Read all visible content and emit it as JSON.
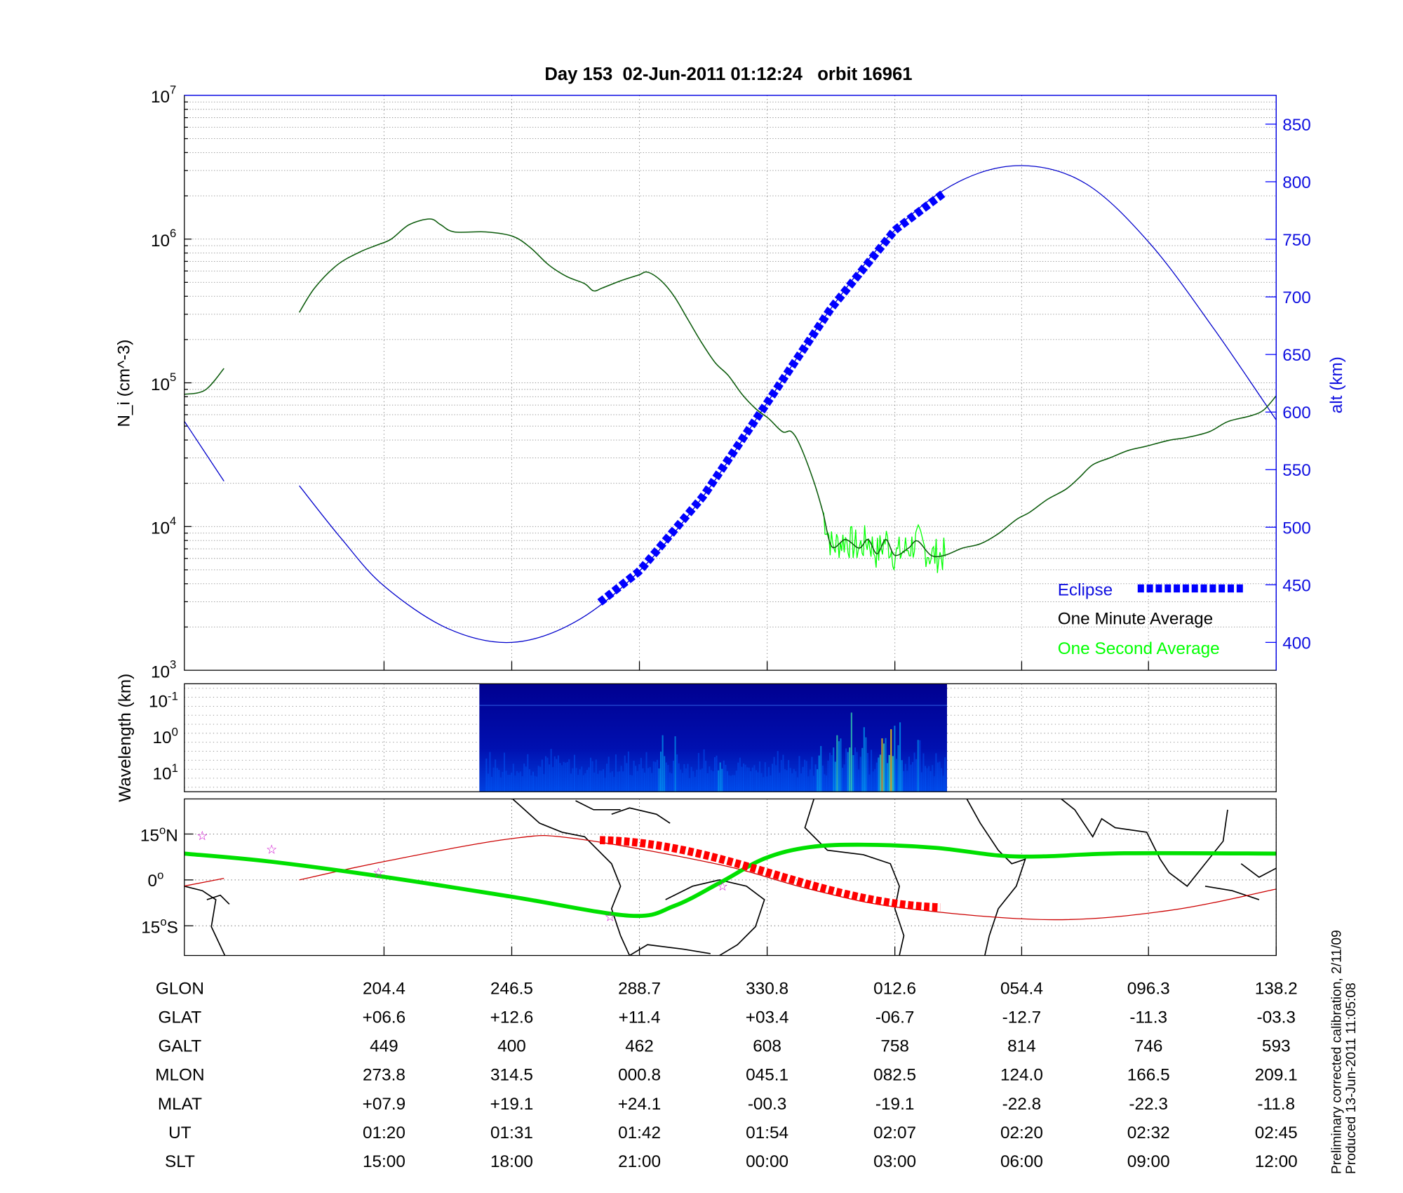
{
  "chart_data": [
    {
      "type": "line",
      "title": "Day 153  02-Jun-2011 01:12:24   orbit 16961",
      "ylabel": "N_i (cm^-3)",
      "ylabel_main": "N",
      "ylabel_sub": "i",
      "ylabel_unit": " (cm",
      "ylabel_exp": "-3",
      "ylabel_close": ")",
      "yscale": "log",
      "ylim_log10": [
        3,
        7
      ],
      "ytick_base": "10",
      "ytick_exps": [
        "3",
        "4",
        "5",
        "6",
        "7"
      ],
      "y2label": "alt (km)",
      "y2lim": [
        375,
        875
      ],
      "y2ticks": [
        "400",
        "450",
        "500",
        "550",
        "600",
        "650",
        "700",
        "750",
        "800",
        "850"
      ],
      "x_unit": "SLT hours (unwrapped)",
      "xlim": [
        10.31,
        35.96
      ],
      "grid": true,
      "legend_position": "bottom-right",
      "legend": [
        {
          "label": "Eclipse",
          "color": "#0000ff"
        },
        {
          "label": "One Minute Average",
          "color": "#000000"
        },
        {
          "label": "One Second Average",
          "color": "#00ff00"
        }
      ],
      "series": [
        {
          "name": "One Minute Average",
          "color": "#0a5a0a",
          "segments": [
            [
              [
                10.31,
                4.92
              ],
              [
                10.8,
                4.95
              ],
              [
                11.24,
                5.1
              ]
            ],
            [
              [
                13.01,
                5.49
              ],
              [
                13.37,
                5.66
              ],
              [
                13.9,
                5.82
              ],
              [
                14.43,
                5.91
              ],
              [
                14.85,
                5.96
              ],
              [
                15.17,
                6.0
              ],
              [
                15.59,
                6.1
              ],
              [
                16.08,
                6.14
              ],
              [
                16.33,
                6.1
              ],
              [
                16.65,
                6.05
              ],
              [
                17.39,
                6.05
              ],
              [
                18.02,
                6.02
              ],
              [
                18.44,
                5.94
              ],
              [
                18.87,
                5.82
              ],
              [
                19.29,
                5.74
              ],
              [
                19.71,
                5.69
              ],
              [
                19.92,
                5.64
              ],
              [
                20.13,
                5.66
              ],
              [
                20.56,
                5.71
              ],
              [
                20.98,
                5.75
              ],
              [
                21.19,
                5.77
              ],
              [
                21.51,
                5.71
              ],
              [
                21.82,
                5.6
              ],
              [
                22.14,
                5.44
              ],
              [
                22.46,
                5.28
              ],
              [
                22.78,
                5.14
              ],
              [
                23.09,
                5.05
              ],
              [
                23.41,
                4.92
              ],
              [
                23.73,
                4.82
              ],
              [
                24.04,
                4.75
              ],
              [
                24.36,
                4.66
              ],
              [
                24.57,
                4.66
              ],
              [
                24.78,
                4.56
              ],
              [
                25.1,
                4.31
              ],
              [
                25.31,
                4.1
              ],
              [
                25.52,
                3.86
              ],
              [
                25.84,
                3.91
              ],
              [
                26.16,
                3.85
              ],
              [
                26.37,
                3.91
              ],
              [
                26.58,
                3.81
              ],
              [
                26.79,
                3.91
              ],
              [
                27.0,
                3.8
              ],
              [
                27.32,
                3.85
              ],
              [
                27.53,
                3.9
              ],
              [
                27.85,
                3.8
              ],
              [
                28.17,
                3.8
              ],
              [
                28.59,
                3.85
              ],
              [
                29.01,
                3.88
              ],
              [
                29.43,
                3.95
              ],
              [
                29.86,
                4.05
              ],
              [
                30.17,
                4.1
              ],
              [
                30.59,
                4.19
              ],
              [
                31.02,
                4.26
              ],
              [
                31.33,
                4.34
              ],
              [
                31.65,
                4.43
              ],
              [
                32.07,
                4.48
              ],
              [
                32.49,
                4.53
              ],
              [
                32.92,
                4.56
              ],
              [
                33.44,
                4.6
              ],
              [
                33.87,
                4.62
              ],
              [
                34.39,
                4.66
              ],
              [
                34.82,
                4.73
              ],
              [
                35.35,
                4.77
              ],
              [
                35.66,
                4.81
              ],
              [
                35.96,
                4.91
              ]
            ]
          ]
        },
        {
          "name": "One Second Average",
          "color": "#00ff00",
          "range": [
            25.3,
            28.2
          ]
        },
        {
          "name": "Altitude (km)",
          "axis": "right",
          "color": "#0000cc",
          "segments": [
            [
              [
                10.31,
                592
              ],
              [
                11.24,
                540
              ]
            ],
            [
              [
                13.01,
                536
              ],
              [
                14.0,
                490
              ],
              [
                15.0,
                449
              ],
              [
                16.5,
                412
              ],
              [
                18.0,
                400
              ],
              [
                19.5,
                418
              ],
              [
                21.0,
                462
              ],
              [
                22.5,
                527
              ],
              [
                24.0,
                608
              ],
              [
                25.5,
                690
              ],
              [
                27.0,
                758
              ],
              [
                28.5,
                800
              ],
              [
                30.0,
                814
              ],
              [
                31.5,
                798
              ],
              [
                33.0,
                746
              ],
              [
                34.5,
                672
              ],
              [
                35.96,
                593
              ]
            ]
          ]
        },
        {
          "name": "Eclipse",
          "axis": "right",
          "color": "#0000ff",
          "range": [
            20.07,
            28.2
          ]
        }
      ]
    },
    {
      "type": "heatmap",
      "ylabel": "Wavelength (km)",
      "ytick_base": "10",
      "ytick_exps": [
        "-1",
        "0",
        "1"
      ],
      "data_range_x": [
        17.2,
        28.2
      ],
      "colormap": "jet"
    },
    {
      "type": "line",
      "ytick_labels": [
        "15",
        "N",
        "0",
        "",
        "15",
        "S"
      ],
      "ytick_values": [
        15,
        0,
        -15
      ],
      "series": [
        {
          "name": "Satellite track",
          "color": "#00e000",
          "points": [
            [
              10.31,
              8.6
            ],
            [
              12.32,
              6
            ],
            [
              15.0,
              1
            ],
            [
              18.0,
              -5.5
            ],
            [
              20.77,
              -11.7
            ],
            [
              21.82,
              -8.5
            ],
            [
              22.88,
              -1
            ],
            [
              23.94,
              7
            ],
            [
              24.99,
              10.7
            ],
            [
              26.26,
              11.5
            ],
            [
              27.95,
              10.5
            ],
            [
              29.43,
              8
            ],
            [
              30.49,
              7.7
            ],
            [
              32.39,
              8.7
            ],
            [
              35.96,
              8.6
            ]
          ]
        },
        {
          "name": "Eclipse track",
          "color": "#ff0000",
          "points": [
            [
              20.07,
              13
            ],
            [
              28.17,
              -9
            ]
          ]
        },
        {
          "name": "Magnetic equator",
          "color": "#cc0000",
          "segments": [
            [
              [
                10.31,
                -2
              ],
              [
                11.24,
                0.5
              ]
            ],
            [
              [
                13.01,
                0
              ],
              [
                15.0,
                6
              ],
              [
                18.0,
                13.5
              ],
              [
                19.5,
                13.5
              ],
              [
                22.88,
                5
              ],
              [
                24.99,
                -3
              ],
              [
                27.1,
                -9
              ],
              [
                30.6,
                -13
              ],
              [
                33.44,
                -10
              ],
              [
                35.96,
                -3
              ]
            ]
          ]
        },
        {
          "name": "Stars",
          "color": "#cc00cc",
          "points": [
            [
              10.73,
              14.5
            ],
            [
              12.36,
              10
            ],
            [
              14.87,
              2.5
            ],
            [
              20.31,
              -12
            ],
            [
              22.95,
              -2
            ]
          ]
        }
      ]
    }
  ],
  "table": {
    "rows": [
      {
        "label": "GLON",
        "values": [
          "204.4",
          "246.5",
          "288.7",
          "330.8",
          "012.6",
          "054.4",
          "096.3",
          "138.2"
        ]
      },
      {
        "label": "GLAT",
        "values": [
          "+06.6",
          "+12.6",
          "+11.4",
          "+03.4",
          "-06.7",
          "-12.7",
          "-11.3",
          "-03.3"
        ]
      },
      {
        "label": "GALT",
        "values": [
          "449",
          "400",
          "462",
          "608",
          "758",
          "814",
          "746",
          "593"
        ]
      },
      {
        "label": "MLON",
        "values": [
          "273.8",
          "314.5",
          "000.8",
          "045.1",
          "082.5",
          "124.0",
          "166.5",
          "209.1"
        ]
      },
      {
        "label": "MLAT",
        "values": [
          "+07.9",
          "+19.1",
          "+24.1",
          "-00.3",
          "-19.1",
          "-22.8",
          "-22.3",
          "-11.8"
        ]
      },
      {
        "label": "UT",
        "values": [
          "01:20",
          "01:31",
          "01:42",
          "01:54",
          "02:07",
          "02:20",
          "02:32",
          "02:45"
        ]
      },
      {
        "label": "SLT",
        "values": [
          "15:00",
          "18:00",
          "21:00",
          "00:00",
          "03:00",
          "06:00",
          "09:00",
          "12:00"
        ]
      }
    ]
  },
  "footer": {
    "line1": "Preliminary corrected calibration, 2/11/09",
    "line2": "Produced 13-Jun-2011 11:05:08"
  }
}
